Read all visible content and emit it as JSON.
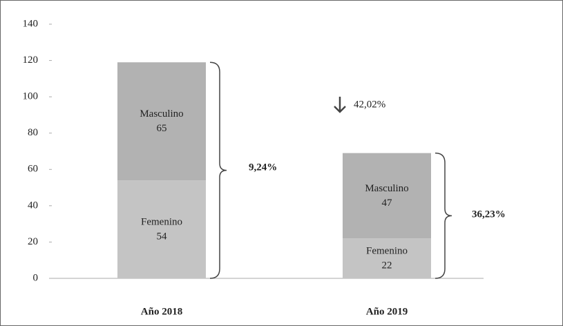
{
  "chart_data": {
    "type": "stacked_bar",
    "categories": [
      "Año 2018",
      "Año 2019"
    ],
    "series": [
      {
        "name": "Femenino",
        "color": "#c4c4c4",
        "values": [
          54,
          22
        ]
      },
      {
        "name": "Masculino",
        "color": "#b2b2b2",
        "values": [
          65,
          47
        ]
      }
    ],
    "ylim": [
      0,
      140
    ],
    "yticks": [
      0,
      20,
      40,
      60,
      80,
      100,
      120,
      140
    ],
    "annotations": [
      "9,24%",
      "36,23%",
      "42,02%"
    ]
  }
}
